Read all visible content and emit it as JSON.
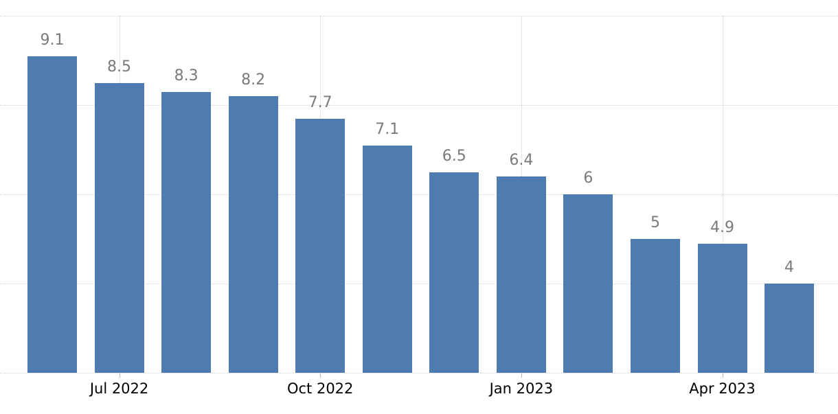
{
  "chart_data": {
    "type": "bar",
    "title": "",
    "xlabel": "",
    "ylabel": "",
    "values": [
      9.1,
      8.5,
      8.3,
      8.2,
      7.7,
      7.1,
      6.5,
      6.4,
      6,
      5,
      4.9,
      4
    ],
    "value_labels": [
      "9.1",
      "8.5",
      "8.3",
      "8.2",
      "7.7",
      "7.1",
      "6.5",
      "6.4",
      "6",
      "5",
      "4.9",
      "4"
    ],
    "x_ticks": [
      {
        "label": "Jul 2022",
        "bar_index": 1
      },
      {
        "label": "Oct 2022",
        "bar_index": 4
      },
      {
        "label": "Jan 2023",
        "bar_index": 7
      },
      {
        "label": "Apr 2023",
        "bar_index": 10
      }
    ],
    "ylim": [
      2,
      10
    ],
    "y_gridline_values": [
      2,
      4,
      6,
      8,
      10
    ],
    "grid": "horizontal dotted lines every 2 units; vertical dotted lines at labeled x ticks; no visible y-axis tick labels",
    "legend": "none",
    "colors": {
      "bar": "#4e7cb1",
      "value_label": "#7a7a7a",
      "axis_label": "#000000",
      "gridline": "#d2d2d2",
      "tick": "#b3b3b3",
      "background": "#ffffff"
    }
  }
}
